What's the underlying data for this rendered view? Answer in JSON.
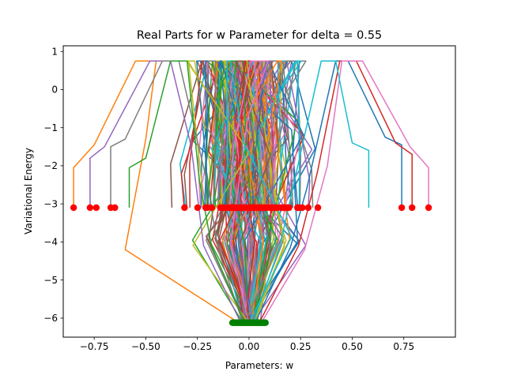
{
  "chart_data": {
    "type": "line",
    "title": "Real Parts for w Parameter for delta = 0.55",
    "xlabel": "Parameters: w",
    "ylabel": "Variational Energy",
    "xlim": [
      -0.9,
      1.0
    ],
    "ylim": [
      -6.5,
      1.15
    ],
    "grid": false,
    "legend": "none",
    "x_ticks": [
      -0.75,
      -0.5,
      -0.25,
      0.0,
      0.25,
      0.5,
      0.75
    ],
    "x_tick_labels": [
      "−0.75",
      "−0.50",
      "−0.25",
      "0.00",
      "0.25",
      "0.50",
      "0.75"
    ],
    "y_ticks": [
      1,
      0,
      -1,
      -2,
      -3,
      -4,
      -5,
      -6
    ],
    "y_tick_labels": [
      "1",
      "0",
      "−1",
      "−2",
      "−3",
      "−4",
      "−5",
      "−6"
    ],
    "colors": [
      "#1f77b4",
      "#ff7f0e",
      "#2ca02c",
      "#d62728",
      "#9467bd",
      "#8c564b",
      "#e377c2",
      "#7f7f7f",
      "#bcbd22",
      "#17becf"
    ],
    "marker_colors": {
      "upper": "#ff0000",
      "lower": "#008000"
    },
    "marker_energy": {
      "upper": -3.1,
      "lower": -6.12
    },
    "outer_lines": [
      {
        "x": [
          -0.85,
          -0.85,
          -0.75,
          -0.55,
          -0.45,
          -0.5,
          -0.6,
          -0.05,
          0.02
        ],
        "y": [
          -3.1,
          -2.05,
          -1.45,
          0.75,
          0.75,
          -1.3,
          -4.2,
          -6.12,
          -6.12
        ]
      },
      {
        "x": [
          -0.77,
          -0.77,
          -0.7,
          -0.48,
          -0.38,
          -0.28,
          -0.22,
          -0.04,
          0.03
        ],
        "y": [
          -3.1,
          -1.8,
          -1.5,
          0.75,
          0.75,
          -1.5,
          -4.1,
          -6.12,
          -6.12
        ]
      },
      {
        "x": [
          -0.67,
          -0.67,
          -0.6,
          -0.42,
          -0.34,
          -0.2,
          -0.15,
          -0.03,
          0.02
        ],
        "y": [
          -3.1,
          -1.5,
          -1.3,
          0.75,
          0.75,
          -2.5,
          -4.2,
          -6.12,
          -6.12
        ]
      },
      {
        "x": [
          0.74,
          0.74,
          0.66,
          0.48,
          0.42,
          0.28,
          0.2,
          0.03,
          -0.02
        ],
        "y": [
          -3.1,
          -1.45,
          -1.25,
          0.75,
          0.75,
          -2.6,
          -4.15,
          -6.12,
          -6.12
        ]
      },
      {
        "x": [
          0.79,
          0.79,
          0.71,
          0.52,
          0.44,
          0.33,
          0.24,
          0.05,
          -0.03
        ],
        "y": [
          -3.1,
          -1.7,
          -1.4,
          0.75,
          0.75,
          -2.2,
          -4.1,
          -6.12,
          -6.12
        ]
      },
      {
        "x": [
          0.87,
          0.87,
          0.78,
          0.55,
          0.45,
          0.38,
          0.27,
          0.06,
          -0.04
        ],
        "y": [
          -3.1,
          -2.05,
          -1.5,
          0.75,
          0.75,
          -2.0,
          -4.2,
          -6.12,
          -6.12
        ]
      },
      {
        "x": [
          0.58,
          0.58,
          0.5,
          0.42,
          0.35,
          0.22,
          0.15,
          0.02,
          -0.01
        ],
        "y": [
          -3.1,
          -1.6,
          -1.4,
          0.75,
          0.75,
          -2.4,
          -4.1,
          -6.12,
          -6.12
        ]
      },
      {
        "x": [
          -0.58,
          -0.58,
          -0.5,
          -0.38,
          -0.3,
          -0.24,
          -0.18,
          -0.02,
          0.01
        ],
        "y": [
          -3.1,
          -2.05,
          -1.8,
          0.75,
          0.75,
          -2.4,
          -4.15,
          -6.12,
          -6.12
        ]
      }
    ],
    "random_seed": 7,
    "random_line_count": 120,
    "upper_marker_count": 70,
    "lower_marker_count": 40
  }
}
